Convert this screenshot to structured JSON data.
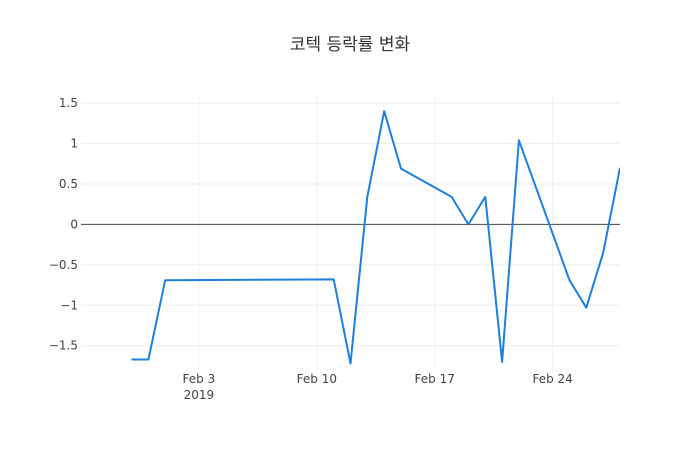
{
  "chart_data": {
    "type": "line",
    "title": "코텍 등락률 변화",
    "xlabel": "",
    "ylabel": "",
    "xlim": [
      "2019-01-27",
      "2019-02-28"
    ],
    "ylim": [
      -1.8,
      1.6
    ],
    "grid": true,
    "x_ticks": [
      {
        "value": "2019-02-03",
        "label": "Feb 3",
        "sublabel": "2019"
      },
      {
        "value": "2019-02-10",
        "label": "Feb 10",
        "sublabel": ""
      },
      {
        "value": "2019-02-17",
        "label": "Feb 17",
        "sublabel": ""
      },
      {
        "value": "2019-02-24",
        "label": "Feb 24",
        "sublabel": ""
      }
    ],
    "y_ticks": [
      {
        "value": 1.5,
        "label": "1.5"
      },
      {
        "value": 1,
        "label": "1"
      },
      {
        "value": 0.5,
        "label": "0.5"
      },
      {
        "value": 0,
        "label": "0"
      },
      {
        "value": -0.5,
        "label": "−0.5"
      },
      {
        "value": -1,
        "label": "−1"
      },
      {
        "value": -1.5,
        "label": "−1.5"
      }
    ],
    "series": [
      {
        "color": "#1f7fdc",
        "x": [
          "2019-01-30",
          "2019-01-31",
          "2019-02-01",
          "2019-02-11",
          "2019-02-12",
          "2019-02-13",
          "2019-02-14",
          "2019-02-15",
          "2019-02-18",
          "2019-02-19",
          "2019-02-20",
          "2019-02-21",
          "2019-02-22",
          "2019-02-25",
          "2019-02-26",
          "2019-02-27",
          "2019-02-28"
        ],
        "y": [
          -1.67,
          -1.67,
          -0.69,
          -0.68,
          -1.72,
          0.34,
          1.4,
          0.69,
          0.34,
          0.0,
          0.34,
          -1.7,
          1.04,
          -0.69,
          -1.03,
          -0.35,
          0.7
        ]
      }
    ]
  }
}
